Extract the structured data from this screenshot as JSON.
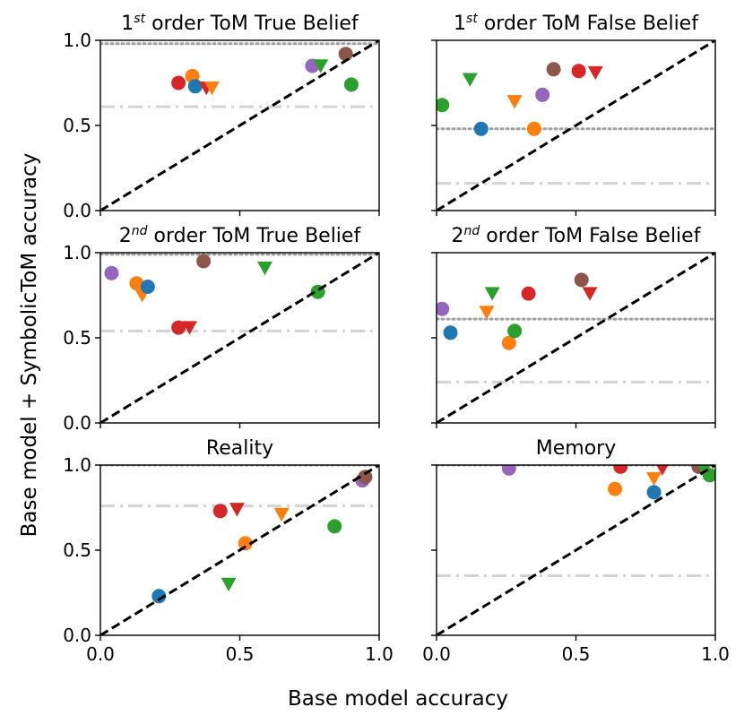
{
  "figure": {
    "xlabel": "Base model accuracy",
    "ylabel": "Base model + SymbolicToM accuracy"
  },
  "chart_data": [
    {
      "type": "scatter",
      "title": "order ToM True Belief",
      "title_ordinal": {
        "num": "1",
        "sup": "st"
      },
      "xlim": [
        0,
        1.0
      ],
      "ylim": [
        0,
        1.0
      ],
      "xticks": [
        "0.0",
        "0.5",
        "1.0"
      ],
      "yticks": [
        "0.0",
        "0.5",
        "1.0"
      ],
      "show_xticklabels": false,
      "show_yticklabels": true,
      "ref_dotted": 0.98,
      "ref_dashdot": 0.61,
      "points": [
        {
          "x": 0.28,
          "y": 0.75,
          "color": "#d62728",
          "marker": "circle"
        },
        {
          "x": 0.33,
          "y": 0.79,
          "color": "#ff7f0e",
          "marker": "circle"
        },
        {
          "x": 0.34,
          "y": 0.73,
          "color": "#1f77b4",
          "marker": "circle"
        },
        {
          "x": 0.38,
          "y": 0.72,
          "color": "#d62728",
          "marker": "triangle"
        },
        {
          "x": 0.4,
          "y": 0.72,
          "color": "#ff7f0e",
          "marker": "triangle"
        },
        {
          "x": 0.76,
          "y": 0.85,
          "color": "#9467bd",
          "marker": "circle"
        },
        {
          "x": 0.79,
          "y": 0.85,
          "color": "#2ca02c",
          "marker": "triangle"
        },
        {
          "x": 0.88,
          "y": 0.92,
          "color": "#8c564b",
          "marker": "circle"
        },
        {
          "x": 0.9,
          "y": 0.74,
          "color": "#2ca02c",
          "marker": "circle"
        }
      ]
    },
    {
      "type": "scatter",
      "title": "order ToM False Belief",
      "title_ordinal": {
        "num": "1",
        "sup": "st"
      },
      "xlim": [
        0,
        1.0
      ],
      "ylim": [
        0,
        1.0
      ],
      "xticks": [
        "0.0",
        "0.5",
        "1.0"
      ],
      "yticks": [
        "0.0",
        "0.5",
        "1.0"
      ],
      "show_xticklabels": false,
      "show_yticklabels": false,
      "ref_dotted": 0.48,
      "ref_dashdot": 0.16,
      "points": [
        {
          "x": 0.02,
          "y": 0.62,
          "color": "#2ca02c",
          "marker": "circle"
        },
        {
          "x": 0.12,
          "y": 0.77,
          "color": "#2ca02c",
          "marker": "triangle"
        },
        {
          "x": 0.16,
          "y": 0.48,
          "color": "#1f77b4",
          "marker": "circle"
        },
        {
          "x": 0.28,
          "y": 0.64,
          "color": "#ff7f0e",
          "marker": "triangle"
        },
        {
          "x": 0.35,
          "y": 0.48,
          "color": "#ff7f0e",
          "marker": "circle"
        },
        {
          "x": 0.38,
          "y": 0.68,
          "color": "#9467bd",
          "marker": "circle"
        },
        {
          "x": 0.42,
          "y": 0.83,
          "color": "#8c564b",
          "marker": "circle"
        },
        {
          "x": 0.51,
          "y": 0.82,
          "color": "#d62728",
          "marker": "circle"
        },
        {
          "x": 0.57,
          "y": 0.81,
          "color": "#d62728",
          "marker": "triangle"
        }
      ]
    },
    {
      "type": "scatter",
      "title": "order ToM True Belief",
      "title_ordinal": {
        "num": "2",
        "sup": "nd"
      },
      "xlim": [
        0,
        1.0
      ],
      "ylim": [
        0,
        1.0
      ],
      "xticks": [
        "0.0",
        "0.5",
        "1.0"
      ],
      "yticks": [
        "0.0",
        "0.5",
        "1.0"
      ],
      "show_xticklabels": false,
      "show_yticklabels": true,
      "ref_dotted": 0.99,
      "ref_dashdot": 0.54,
      "points": [
        {
          "x": 0.04,
          "y": 0.88,
          "color": "#9467bd",
          "marker": "circle"
        },
        {
          "x": 0.13,
          "y": 0.82,
          "color": "#ff7f0e",
          "marker": "circle"
        },
        {
          "x": 0.15,
          "y": 0.75,
          "color": "#ff7f0e",
          "marker": "triangle"
        },
        {
          "x": 0.17,
          "y": 0.8,
          "color": "#1f77b4",
          "marker": "circle"
        },
        {
          "x": 0.28,
          "y": 0.56,
          "color": "#d62728",
          "marker": "circle"
        },
        {
          "x": 0.32,
          "y": 0.56,
          "color": "#d62728",
          "marker": "triangle"
        },
        {
          "x": 0.37,
          "y": 0.95,
          "color": "#8c564b",
          "marker": "circle"
        },
        {
          "x": 0.59,
          "y": 0.91,
          "color": "#2ca02c",
          "marker": "triangle"
        },
        {
          "x": 0.78,
          "y": 0.77,
          "color": "#2ca02c",
          "marker": "circle"
        }
      ]
    },
    {
      "type": "scatter",
      "title": "order ToM False Belief",
      "title_ordinal": {
        "num": "2",
        "sup": "nd"
      },
      "xlim": [
        0,
        1.0
      ],
      "ylim": [
        0,
        1.0
      ],
      "xticks": [
        "0.0",
        "0.5",
        "1.0"
      ],
      "yticks": [
        "0.0",
        "0.5",
        "1.0"
      ],
      "show_xticklabels": false,
      "show_yticklabels": false,
      "ref_dotted": 0.61,
      "ref_dashdot": 0.24,
      "points": [
        {
          "x": 0.02,
          "y": 0.67,
          "color": "#9467bd",
          "marker": "circle"
        },
        {
          "x": 0.05,
          "y": 0.53,
          "color": "#1f77b4",
          "marker": "circle"
        },
        {
          "x": 0.18,
          "y": 0.65,
          "color": "#ff7f0e",
          "marker": "triangle"
        },
        {
          "x": 0.2,
          "y": 0.76,
          "color": "#2ca02c",
          "marker": "triangle"
        },
        {
          "x": 0.26,
          "y": 0.47,
          "color": "#ff7f0e",
          "marker": "circle"
        },
        {
          "x": 0.28,
          "y": 0.54,
          "color": "#2ca02c",
          "marker": "circle"
        },
        {
          "x": 0.33,
          "y": 0.76,
          "color": "#d62728",
          "marker": "circle"
        },
        {
          "x": 0.52,
          "y": 0.84,
          "color": "#8c564b",
          "marker": "circle"
        },
        {
          "x": 0.55,
          "y": 0.76,
          "color": "#d62728",
          "marker": "triangle"
        }
      ]
    },
    {
      "type": "scatter",
      "title": "Reality",
      "xlim": [
        0,
        1.0
      ],
      "ylim": [
        0,
        1.0
      ],
      "xticks": [
        "0.0",
        "0.5",
        "1.0"
      ],
      "yticks": [
        "0.0",
        "0.5",
        "1.0"
      ],
      "show_xticklabels": true,
      "show_yticklabels": true,
      "ref_dotted": 1.0,
      "ref_dashdot": 0.76,
      "points": [
        {
          "x": 0.21,
          "y": 0.23,
          "color": "#1f77b4",
          "marker": "circle"
        },
        {
          "x": 0.43,
          "y": 0.73,
          "color": "#d62728",
          "marker": "circle"
        },
        {
          "x": 0.46,
          "y": 0.3,
          "color": "#2ca02c",
          "marker": "triangle"
        },
        {
          "x": 0.49,
          "y": 0.74,
          "color": "#d62728",
          "marker": "triangle"
        },
        {
          "x": 0.52,
          "y": 0.54,
          "color": "#ff7f0e",
          "marker": "circle"
        },
        {
          "x": 0.65,
          "y": 0.71,
          "color": "#ff7f0e",
          "marker": "triangle"
        },
        {
          "x": 0.84,
          "y": 0.64,
          "color": "#2ca02c",
          "marker": "circle"
        },
        {
          "x": 0.94,
          "y": 0.91,
          "color": "#9467bd",
          "marker": "circle"
        },
        {
          "x": 0.95,
          "y": 0.93,
          "color": "#8c564b",
          "marker": "circle"
        }
      ]
    },
    {
      "type": "scatter",
      "title": "Memory",
      "xlim": [
        0,
        1.0
      ],
      "ylim": [
        0,
        1.0
      ],
      "xticks": [
        "0.0",
        "0.5",
        "1.0"
      ],
      "yticks": [
        "0.0",
        "0.5",
        "1.0"
      ],
      "show_xticklabels": true,
      "show_yticklabels": false,
      "ref_dotted": 1.0,
      "ref_dashdot": 0.35,
      "points": [
        {
          "x": 0.26,
          "y": 0.98,
          "color": "#9467bd",
          "marker": "circle"
        },
        {
          "x": 0.64,
          "y": 0.86,
          "color": "#ff7f0e",
          "marker": "circle"
        },
        {
          "x": 0.66,
          "y": 0.99,
          "color": "#d62728",
          "marker": "circle"
        },
        {
          "x": 0.78,
          "y": 0.92,
          "color": "#ff7f0e",
          "marker": "triangle"
        },
        {
          "x": 0.78,
          "y": 0.84,
          "color": "#1f77b4",
          "marker": "circle"
        },
        {
          "x": 0.81,
          "y": 0.98,
          "color": "#d62728",
          "marker": "triangle"
        },
        {
          "x": 0.94,
          "y": 0.99,
          "color": "#8c564b",
          "marker": "circle"
        },
        {
          "x": 0.96,
          "y": 0.97,
          "color": "#2ca02c",
          "marker": "triangle"
        },
        {
          "x": 0.98,
          "y": 0.94,
          "color": "#2ca02c",
          "marker": "circle"
        }
      ]
    }
  ]
}
